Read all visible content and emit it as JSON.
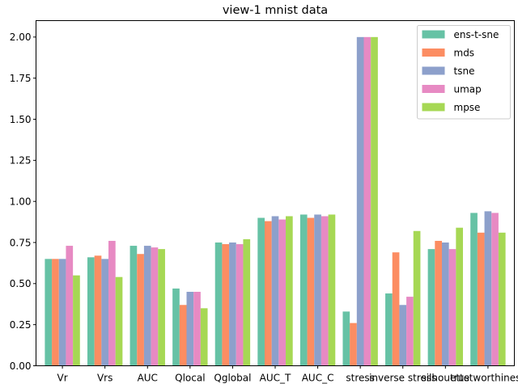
{
  "chart_data": {
    "type": "bar",
    "title": "view-1 mnist data",
    "xlabel": "",
    "ylabel": "",
    "ylim": [
      0,
      2.1
    ],
    "yticks": [
      "0.00",
      "0.25",
      "0.50",
      "0.75",
      "1.00",
      "1.25",
      "1.50",
      "1.75",
      "2.00"
    ],
    "grid": false,
    "legend_position": "top-right",
    "categories": [
      "Vr",
      "Vrs",
      "AUC",
      "Qlocal",
      "Qglobal",
      "AUC_T",
      "AUC_C",
      "stress",
      "inverse stress",
      "silhouette",
      "trustworthiness"
    ],
    "series": [
      {
        "name": "ens-t-sne",
        "color": "#66c2a5",
        "values": [
          0.65,
          0.66,
          0.73,
          0.47,
          0.75,
          0.9,
          0.92,
          0.33,
          0.44,
          0.71,
          0.93
        ]
      },
      {
        "name": "mds",
        "color": "#fc8d62",
        "values": [
          0.65,
          0.67,
          0.68,
          0.37,
          0.74,
          0.88,
          0.9,
          0.26,
          0.69,
          0.76,
          0.81
        ]
      },
      {
        "name": "tsne",
        "color": "#8da0cb",
        "values": [
          0.65,
          0.65,
          0.73,
          0.45,
          0.75,
          0.91,
          0.92,
          2.0,
          0.37,
          0.75,
          0.94
        ]
      },
      {
        "name": "umap",
        "color": "#e78ac3",
        "values": [
          0.73,
          0.76,
          0.72,
          0.45,
          0.74,
          0.89,
          0.91,
          2.0,
          0.42,
          0.71,
          0.93
        ]
      },
      {
        "name": "mpse",
        "color": "#a6d854",
        "values": [
          0.55,
          0.54,
          0.71,
          0.35,
          0.77,
          0.91,
          0.92,
          2.0,
          0.82,
          0.84,
          0.81
        ]
      }
    ]
  }
}
